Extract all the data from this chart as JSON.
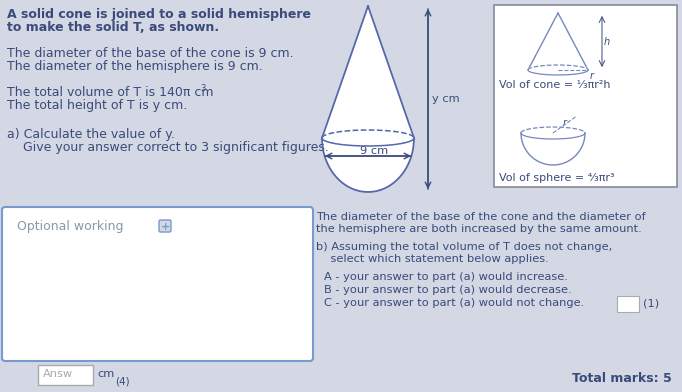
{
  "bg_color": "#d4d8e4",
  "text_color": "#3a4a7a",
  "title_line1": "A solid cone is joined to a solid hemisphere",
  "title_line2": "to make the solid T, as shown.",
  "line1": "The diameter of the base of the cone is 9 cm.",
  "line2": "The diameter of the hemisphere is 9 cm.",
  "line3a": "The total volume of T is 140π cm",
  "line3b": "3",
  "line4": "The total height of T is y cm.",
  "line5a": "a) Calculate the value of y.",
  "line5b": "    Give your answer correct to 3 significant figures.",
  "optional_label": "Optional working",
  "part_b_intro1": "The diameter of the base of the cone and the diameter of",
  "part_b_intro2": "the hemisphere are both increased by the same amount.",
  "part_b1": "b) Assuming the total volume of T does not change,",
  "part_b2": "    select which statement below applies.",
  "option_A": "A - your answer to part (a) would increase.",
  "option_B": "B - your answer to part (a) would decrease.",
  "option_C": "C - your answer to part (a) would not change.",
  "mark1": "(1)",
  "answ_label": "Answ",
  "cm_label": "cm",
  "mark4": "(4)",
  "total_marks": "Total marks: 5",
  "ycm_label": "y cm",
  "nine_cm_label": "9 cm",
  "vol_cone_text": "Vol of cone = ",
  "vol_cone_frac": "1",
  "vol_cone_rest": "πr²h",
  "vol_sphere_text": "Vol of sphere = ",
  "vol_sphere_frac": "4",
  "vol_sphere_rest": "πr³",
  "box_border_color": "#7799cc",
  "formula_box_border": "#888899",
  "shape_color": "#5566aa",
  "formula_shape_color": "#7788bb"
}
